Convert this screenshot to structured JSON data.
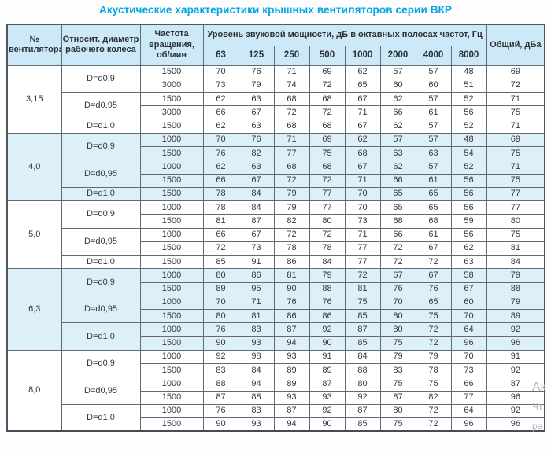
{
  "title": "Акустические характеристики крышных вентиляторов серии ВКР",
  "colors": {
    "title_accent": "#00a6e2",
    "header_bg": "#cde9f7",
    "shaded_row_bg": "#ddeff9",
    "border": "#636a72",
    "outer_border": "#4e565f"
  },
  "watermark": {
    "line1": "Ак",
    "line2": "Чт",
    "line3": "ра"
  },
  "chart_data": {
    "type": "table",
    "title": "Акустические характеристики крышных вентиляторов серии ВКР",
    "header": {
      "fan_no": "№ вентилятора",
      "rel_diameter": "Относит. диаметр рабочего колеса",
      "rotation": "Частота вращения, об/мин",
      "octave_title": "Уровень звуковой мощности, дБ в октавных полосах частот, Гц",
      "octave_bands": [
        "63",
        "125",
        "250",
        "500",
        "1000",
        "2000",
        "4000",
        "8000"
      ],
      "total": "Общий, дБа"
    },
    "groups": [
      {
        "fan": "3,15",
        "shaded": false,
        "subgroups": [
          {
            "diameter": "D=d0,9",
            "rows": [
              {
                "rpm": "1500",
                "levels": [
                  "70",
                  "76",
                  "71",
                  "69",
                  "62",
                  "57",
                  "57",
                  "48"
                ],
                "total": "69"
              },
              {
                "rpm": "3000",
                "levels": [
                  "73",
                  "79",
                  "74",
                  "72",
                  "65",
                  "60",
                  "60",
                  "51"
                ],
                "total": "72"
              }
            ]
          },
          {
            "diameter": "D=d0,95",
            "rows": [
              {
                "rpm": "1500",
                "levels": [
                  "62",
                  "63",
                  "68",
                  "68",
                  "67",
                  "62",
                  "57",
                  "52"
                ],
                "total": "71"
              },
              {
                "rpm": "3000",
                "levels": [
                  "66",
                  "67",
                  "72",
                  "72",
                  "71",
                  "66",
                  "61",
                  "56"
                ],
                "total": "75"
              }
            ]
          },
          {
            "diameter": "D=d1,0",
            "rows": [
              {
                "rpm": "1500",
                "levels": [
                  "62",
                  "63",
                  "68",
                  "68",
                  "67",
                  "62",
                  "57",
                  "52"
                ],
                "total": "71"
              }
            ]
          }
        ]
      },
      {
        "fan": "4,0",
        "shaded": true,
        "subgroups": [
          {
            "diameter": "D=d0,9",
            "rows": [
              {
                "rpm": "1000",
                "levels": [
                  "70",
                  "76",
                  "71",
                  "69",
                  "62",
                  "57",
                  "57",
                  "48"
                ],
                "total": "69"
              },
              {
                "rpm": "1500",
                "levels": [
                  "76",
                  "82",
                  "77",
                  "75",
                  "68",
                  "63",
                  "63",
                  "54"
                ],
                "total": "75"
              }
            ]
          },
          {
            "diameter": "D=d0,95",
            "rows": [
              {
                "rpm": "1000",
                "levels": [
                  "62",
                  "63",
                  "68",
                  "68",
                  "67",
                  "62",
                  "57",
                  "52"
                ],
                "total": "71"
              },
              {
                "rpm": "1500",
                "levels": [
                  "66",
                  "67",
                  "72",
                  "72",
                  "71",
                  "66",
                  "61",
                  "56"
                ],
                "total": "75"
              }
            ]
          },
          {
            "diameter": "D=d1,0",
            "rows": [
              {
                "rpm": "1500",
                "levels": [
                  "78",
                  "84",
                  "79",
                  "77",
                  "70",
                  "65",
                  "65",
                  "56"
                ],
                "total": "77"
              }
            ]
          }
        ]
      },
      {
        "fan": "5,0",
        "shaded": false,
        "subgroups": [
          {
            "diameter": "D=d0,9",
            "rows": [
              {
                "rpm": "1000",
                "levels": [
                  "78",
                  "84",
                  "79",
                  "77",
                  "70",
                  "65",
                  "65",
                  "56"
                ],
                "total": "77"
              },
              {
                "rpm": "1500",
                "levels": [
                  "81",
                  "87",
                  "82",
                  "80",
                  "73",
                  "68",
                  "68",
                  "59"
                ],
                "total": "80"
              }
            ]
          },
          {
            "diameter": "D=d0,95",
            "rows": [
              {
                "rpm": "1000",
                "levels": [
                  "66",
                  "67",
                  "72",
                  "72",
                  "71",
                  "66",
                  "61",
                  "56"
                ],
                "total": "75"
              },
              {
                "rpm": "1500",
                "levels": [
                  "72",
                  "73",
                  "78",
                  "78",
                  "77",
                  "72",
                  "67",
                  "62"
                ],
                "total": "81"
              }
            ]
          },
          {
            "diameter": "D=d1,0",
            "rows": [
              {
                "rpm": "1500",
                "levels": [
                  "85",
                  "91",
                  "86",
                  "84",
                  "77",
                  "72",
                  "72",
                  "63"
                ],
                "total": "84"
              }
            ]
          }
        ]
      },
      {
        "fan": "6,3",
        "shaded": true,
        "subgroups": [
          {
            "diameter": "D=d0,9",
            "rows": [
              {
                "rpm": "1000",
                "levels": [
                  "80",
                  "86",
                  "81",
                  "79",
                  "72",
                  "67",
                  "67",
                  "58"
                ],
                "total": "79"
              },
              {
                "rpm": "1500",
                "levels": [
                  "89",
                  "95",
                  "90",
                  "88",
                  "81",
                  "76",
                  "76",
                  "67"
                ],
                "total": "88"
              }
            ]
          },
          {
            "diameter": "D=d0,95",
            "rows": [
              {
                "rpm": "1000",
                "levels": [
                  "70",
                  "71",
                  "76",
                  "76",
                  "75",
                  "70",
                  "65",
                  "60"
                ],
                "total": "79"
              },
              {
                "rpm": "1500",
                "levels": [
                  "80",
                  "81",
                  "86",
                  "86",
                  "85",
                  "80",
                  "75",
                  "70"
                ],
                "total": "89"
              }
            ]
          },
          {
            "diameter": "D=d1,0",
            "rows": [
              {
                "rpm": "1000",
                "levels": [
                  "76",
                  "83",
                  "87",
                  "92",
                  "87",
                  "80",
                  "72",
                  "64"
                ],
                "total": "92"
              },
              {
                "rpm": "1500",
                "levels": [
                  "90",
                  "93",
                  "94",
                  "90",
                  "85",
                  "75",
                  "72",
                  "96"
                ],
                "total": "96"
              }
            ]
          }
        ]
      },
      {
        "fan": "8,0",
        "shaded": false,
        "subgroups": [
          {
            "diameter": "D=d0,9",
            "rows": [
              {
                "rpm": "1000",
                "levels": [
                  "92",
                  "98",
                  "93",
                  "91",
                  "84",
                  "79",
                  "79",
                  "70"
                ],
                "total": "91"
              },
              {
                "rpm": "1500",
                "levels": [
                  "83",
                  "84",
                  "89",
                  "89",
                  "88",
                  "83",
                  "78",
                  "73"
                ],
                "total": "92"
              }
            ]
          },
          {
            "diameter": "D=d0,95",
            "rows": [
              {
                "rpm": "1000",
                "levels": [
                  "88",
                  "94",
                  "89",
                  "87",
                  "80",
                  "75",
                  "75",
                  "66"
                ],
                "total": "87"
              },
              {
                "rpm": "1500",
                "levels": [
                  "87",
                  "88",
                  "93",
                  "93",
                  "92",
                  "87",
                  "82",
                  "77"
                ],
                "total": "96"
              }
            ]
          },
          {
            "diameter": "D=d1,0",
            "rows": [
              {
                "rpm": "1000",
                "levels": [
                  "76",
                  "83",
                  "87",
                  "92",
                  "87",
                  "80",
                  "72",
                  "64"
                ],
                "total": "92"
              },
              {
                "rpm": "1500",
                "levels": [
                  "90",
                  "93",
                  "94",
                  "90",
                  "85",
                  "75",
                  "72",
                  "96"
                ],
                "total": "96"
              }
            ]
          }
        ]
      }
    ]
  }
}
